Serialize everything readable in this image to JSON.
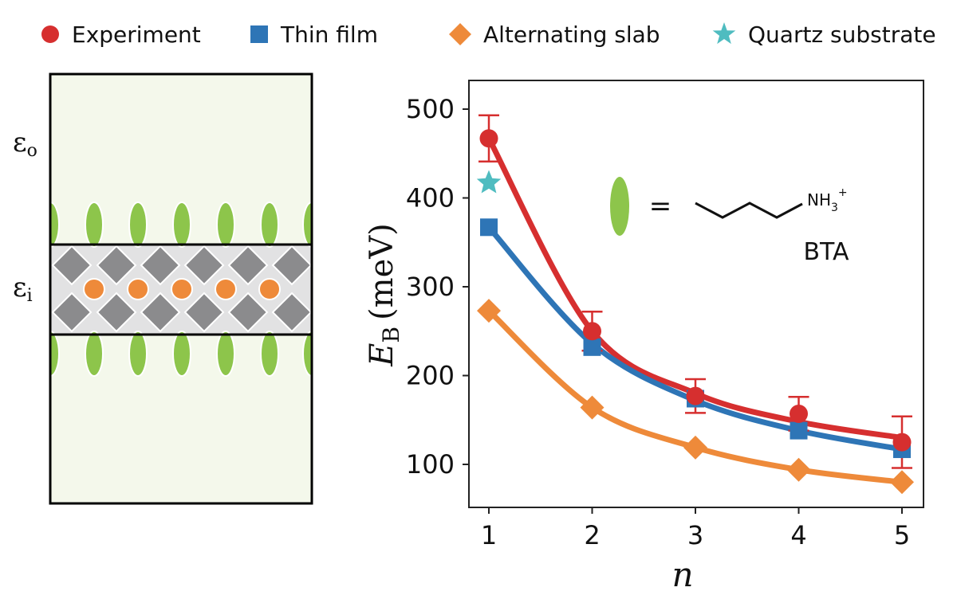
{
  "legend": [
    {
      "label": "Experiment",
      "color": "#d62f2f",
      "marker": "circle"
    },
    {
      "label": "Thin film",
      "color": "#2e75b6",
      "marker": "square"
    },
    {
      "label": "Alternating slab",
      "color": "#ee8a3a",
      "marker": "diamond"
    },
    {
      "label": "Quartz substrate",
      "color": "#4fbcc0",
      "marker": "star"
    }
  ],
  "schematic": {
    "eps_outer": "ε",
    "eps_outer_sub": "o",
    "eps_inner": "ε",
    "eps_inner_sub": "i",
    "background_color": "#f4f8eb",
    "organic_color": "#8dc54b",
    "octahedron_color": "#8b8b8d",
    "cation_color": "#ee8a3a"
  },
  "inset": {
    "equals": "=",
    "formula_main": "NH",
    "formula_sub": "3",
    "formula_sup": "+",
    "molecule_label": "BTA"
  },
  "chart_data": {
    "type": "line",
    "x": [
      1,
      2,
      3,
      4,
      5
    ],
    "xticks": [
      "1",
      "2",
      "3",
      "4",
      "5"
    ],
    "yticks": [
      "100",
      "200",
      "300",
      "400",
      "500"
    ],
    "xlabel": "n",
    "ylabel_main": "E",
    "ylabel_sub": "B",
    "ylabel_unit": "(meV)",
    "xlim": [
      0.8,
      5.1
    ],
    "ylim": [
      50,
      530
    ],
    "grid": false,
    "legend_position": "top",
    "series": [
      {
        "name": "Experiment",
        "color": "#d62f2f",
        "marker": "circle",
        "values": [
          467,
          250,
          177,
          157,
          125
        ],
        "errors": [
          26,
          22,
          19,
          19,
          29
        ],
        "fit": [
          467,
          250,
          180,
          148,
          130
        ]
      },
      {
        "name": "Thin film",
        "color": "#2e75b6",
        "marker": "square",
        "values": [
          367,
          232,
          174,
          138,
          117
        ],
        "fit": [
          367,
          236,
          172,
          138,
          117
        ]
      },
      {
        "name": "Alternating slab",
        "color": "#ee8a3a",
        "marker": "diamond",
        "values": [
          273,
          164,
          119,
          94,
          80
        ],
        "fit": [
          273,
          164,
          119,
          94,
          80
        ]
      },
      {
        "name": "Quartz substrate",
        "color": "#4fbcc0",
        "marker": "star",
        "values": [
          417
        ],
        "x": [
          1
        ]
      }
    ]
  }
}
